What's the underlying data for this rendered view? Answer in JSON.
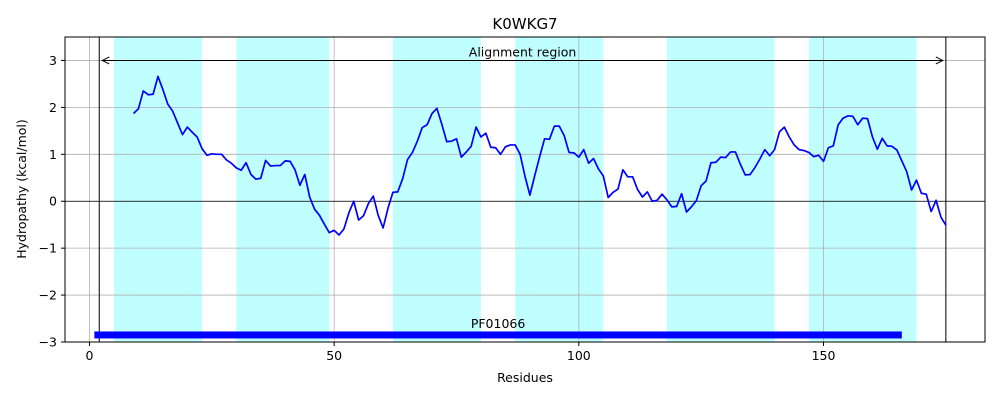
{
  "chart_data": {
    "type": "line",
    "title": "K0WKG7",
    "xlabel": "Residues",
    "ylabel": "Hydropathy (kcal/mol)",
    "xlim": [
      -5,
      183
    ],
    "ylim": [
      -3,
      3.5
    ],
    "xticks": [
      0,
      50,
      100,
      150
    ],
    "yticks": [
      -3,
      -2,
      -1,
      0,
      1,
      2,
      3
    ],
    "grid": true,
    "line_color": "#0000ff",
    "band_color": "#c0ffff",
    "domain_bar_color": "#0000ff",
    "shaded_regions": [
      [
        5,
        23
      ],
      [
        30,
        49
      ],
      [
        62,
        80
      ],
      [
        87,
        105
      ],
      [
        118,
        140
      ],
      [
        147,
        169
      ]
    ],
    "alignment_region": {
      "label": "Alignment region",
      "start": 2,
      "end": 175,
      "y": 3.0
    },
    "domain": {
      "label": "PF01066",
      "start": 1,
      "end": 166,
      "y": -2.85
    },
    "series": [
      {
        "x": [
          9,
          10,
          11,
          12,
          13,
          14,
          15,
          16,
          17,
          18,
          19,
          20,
          21,
          22,
          23,
          24,
          25,
          26,
          27,
          28,
          29,
          30,
          31,
          32,
          33,
          34,
          35,
          36,
          37,
          38,
          39,
          40,
          41,
          42,
          43,
          44,
          45,
          46,
          47,
          48,
          49,
          50,
          51,
          52,
          53,
          54,
          55,
          56,
          57,
          58,
          59,
          60,
          61,
          62,
          63,
          64,
          65,
          66,
          67,
          68,
          69,
          70,
          71,
          72,
          73,
          74,
          75,
          76,
          77,
          78,
          79,
          80,
          81,
          82,
          83,
          84,
          85,
          86,
          87,
          88,
          89,
          90,
          91,
          92,
          93,
          94,
          95,
          96,
          97,
          98,
          99,
          100,
          101,
          102,
          103,
          104,
          105,
          106,
          107,
          108,
          109,
          110,
          111,
          112,
          113,
          114,
          115,
          116,
          117,
          118,
          119,
          120,
          121,
          122,
          123,
          124,
          125,
          126,
          127,
          128,
          129,
          130,
          131,
          132,
          133,
          134,
          135,
          136,
          137,
          138,
          139,
          140,
          141,
          142,
          143,
          144,
          145,
          146,
          147,
          148,
          149,
          150,
          151,
          152,
          153,
          154,
          155,
          156,
          157,
          158,
          159,
          160,
          161,
          162,
          163,
          164,
          165,
          166,
          167,
          168,
          169,
          170,
          171,
          172,
          173,
          174,
          175
        ],
        "values": [
          1.87,
          1.97,
          2.35,
          2.27,
          2.28,
          2.66,
          2.38,
          2.07,
          1.92,
          1.67,
          1.42,
          1.58,
          1.47,
          1.37,
          1.12,
          0.98,
          1.01,
          1.0,
          1.0,
          0.88,
          0.81,
          0.71,
          0.66,
          0.82,
          0.57,
          0.47,
          0.49,
          0.87,
          0.75,
          0.76,
          0.76,
          0.86,
          0.85,
          0.67,
          0.34,
          0.57,
          0.09,
          -0.17,
          -0.3,
          -0.49,
          -0.67,
          -0.62,
          -0.72,
          -0.59,
          -0.25,
          0.0,
          -0.4,
          -0.31,
          -0.05,
          0.11,
          -0.3,
          -0.57,
          -0.15,
          0.19,
          0.2,
          0.48,
          0.89,
          1.04,
          1.28,
          1.57,
          1.63,
          1.87,
          1.98,
          1.64,
          1.27,
          1.28,
          1.33,
          0.94,
          1.05,
          1.17,
          1.58,
          1.37,
          1.45,
          1.15,
          1.14,
          1.0,
          1.16,
          1.2,
          1.2,
          1.0,
          0.53,
          0.13,
          0.55,
          0.95,
          1.33,
          1.32,
          1.6,
          1.6,
          1.4,
          1.04,
          1.03,
          0.94,
          1.1,
          0.81,
          0.91,
          0.69,
          0.54,
          0.08,
          0.19,
          0.26,
          0.67,
          0.52,
          0.52,
          0.25,
          0.09,
          0.2,
          0.0,
          0.02,
          0.15,
          0.03,
          -0.12,
          -0.11,
          0.16,
          -0.23,
          -0.12,
          0.01,
          0.33,
          0.43,
          0.82,
          0.83,
          0.94,
          0.93,
          1.05,
          1.05,
          0.79,
          0.56,
          0.57,
          0.72,
          0.9,
          1.1,
          0.97,
          1.1,
          1.48,
          1.58,
          1.37,
          1.2,
          1.1,
          1.08,
          1.04,
          0.95,
          0.98,
          0.85,
          1.14,
          1.18,
          1.63,
          1.77,
          1.82,
          1.81,
          1.63,
          1.77,
          1.76,
          1.37,
          1.11,
          1.34,
          1.18,
          1.17,
          1.09,
          0.86,
          0.63,
          0.24,
          0.45,
          0.17,
          0.15,
          -0.22,
          0.02,
          -0.34,
          -0.51
        ]
      }
    ]
  }
}
